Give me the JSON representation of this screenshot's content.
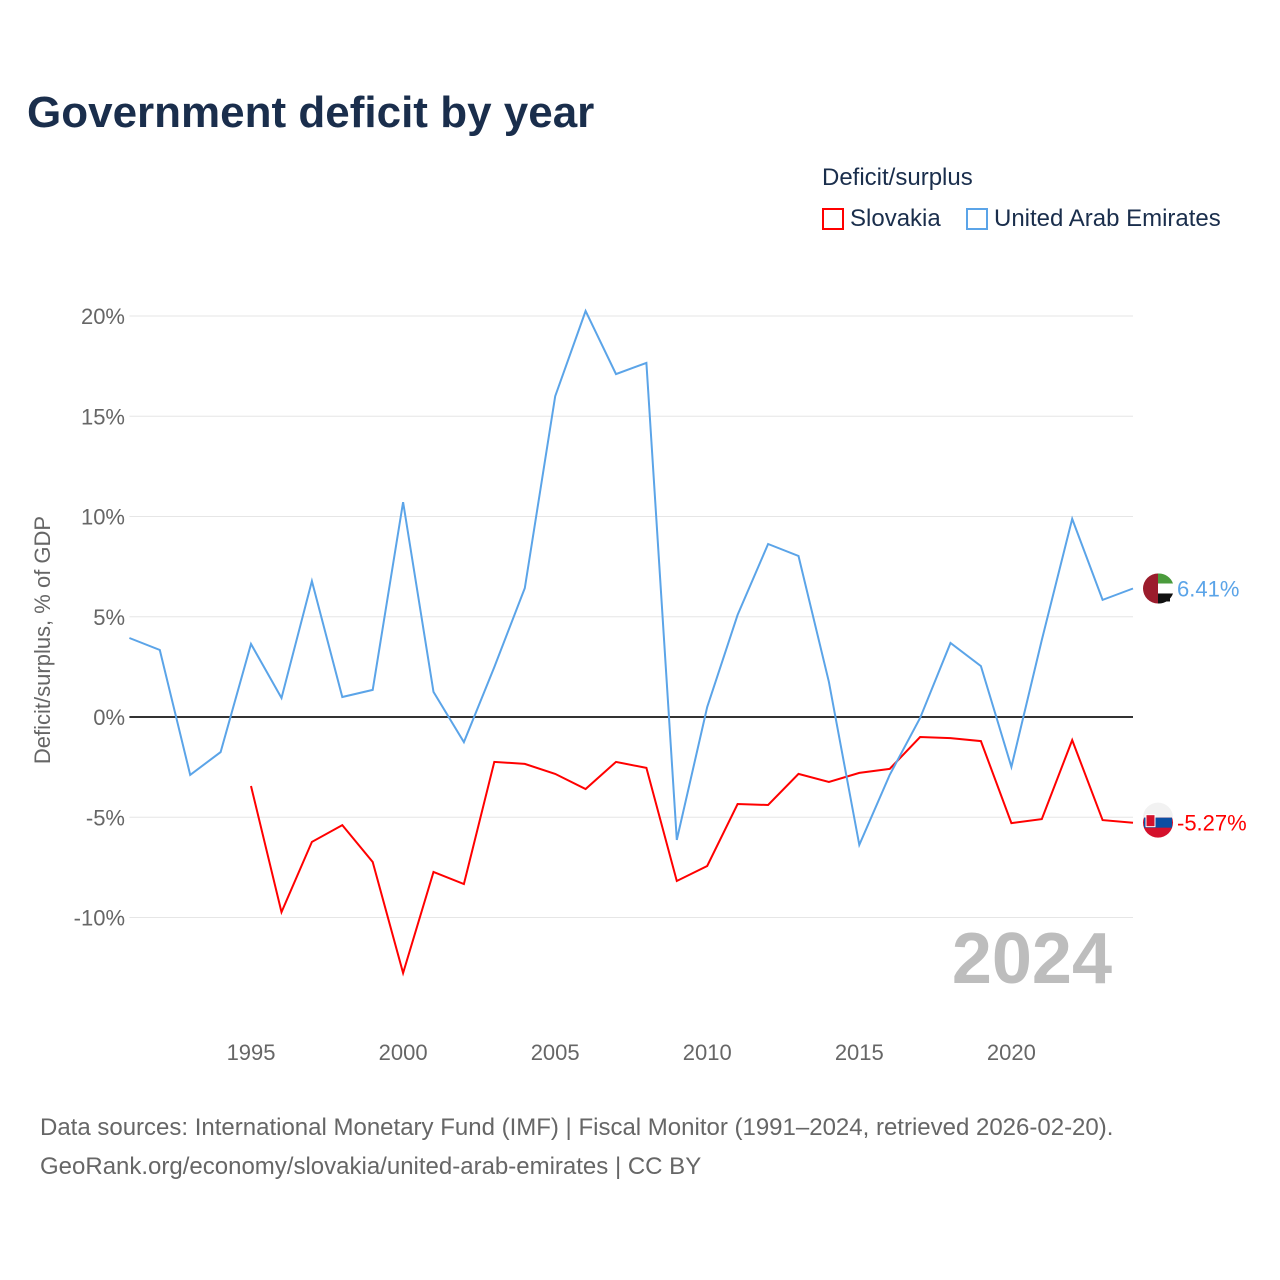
{
  "title": "Government deficit by year",
  "legend_title": "Deficit/surplus",
  "source_line1": "Data sources: International Monetary Fund (IMF) | Fiscal Monitor (1991–2024, retrieved 2026-02-20).",
  "source_line2": "GeoRank.org/economy/slovakia/united-arab-emirates | CC BY",
  "chart_data": {
    "type": "line",
    "title": "Government deficit by year",
    "xlabel": "",
    "ylabel": "Deficit/surplus, % of GDP",
    "xlim": [
      1991,
      2024
    ],
    "ylim": [
      -15,
      21
    ],
    "yticks": [
      20,
      15,
      10,
      5,
      0,
      -5,
      -10
    ],
    "ytick_labels": [
      "20%",
      "15%",
      "10%",
      "5%",
      "0%",
      "-5%",
      "-10%"
    ],
    "xticks": [
      1995,
      2000,
      2005,
      2010,
      2015,
      2020
    ],
    "xtick_labels": [
      "1995",
      "2000",
      "2005",
      "2010",
      "2015",
      "2020"
    ],
    "year_label": "2024",
    "grid": true,
    "legend_position": "top-right",
    "series": [
      {
        "name": "Slovakia",
        "color": "#ff0000",
        "end_label": "-5.27%",
        "flag": "slovakia-flag",
        "x": [
          1995,
          1996,
          1997,
          1998,
          1999,
          2000,
          2001,
          2002,
          2003,
          2004,
          2005,
          2006,
          2007,
          2008,
          2009,
          2010,
          2011,
          2012,
          2013,
          2014,
          2015,
          2016,
          2017,
          2018,
          2019,
          2020,
          2021,
          2022,
          2023,
          2024
        ],
        "values": [
          -3.44,
          -9.73,
          -6.23,
          -5.39,
          -7.23,
          -12.77,
          -7.73,
          -8.33,
          -2.24,
          -2.34,
          -2.84,
          -3.59,
          -2.24,
          -2.54,
          -8.18,
          -7.43,
          -4.34,
          -4.39,
          -2.84,
          -3.24,
          -2.79,
          -2.59,
          -1.0,
          -1.05,
          -1.2,
          -5.29,
          -5.09,
          -1.15,
          -5.14,
          -5.27
        ]
      },
      {
        "name": "United Arab Emirates",
        "color": "#5ba4e8",
        "end_label": "6.41%",
        "flag": "uae-flag",
        "x": [
          1991,
          1992,
          1993,
          1994,
          1995,
          1996,
          1997,
          1998,
          1999,
          2000,
          2001,
          2002,
          2003,
          2004,
          2005,
          2006,
          2007,
          2008,
          2009,
          2010,
          2011,
          2012,
          2013,
          2014,
          2015,
          2016,
          2017,
          2018,
          2019,
          2020,
          2021,
          2022,
          2023,
          2024
        ],
        "values": [
          3.94,
          3.34,
          -2.89,
          -1.75,
          3.64,
          0.95,
          6.78,
          1.0,
          1.35,
          10.72,
          1.25,
          -1.25,
          2.49,
          6.43,
          16.0,
          20.25,
          17.1,
          17.66,
          -6.13,
          0.5,
          5.09,
          8.63,
          8.03,
          1.75,
          -6.38,
          -2.89,
          -0.05,
          3.69,
          2.54,
          -2.49,
          3.84,
          9.88,
          5.84,
          6.41
        ]
      }
    ]
  }
}
